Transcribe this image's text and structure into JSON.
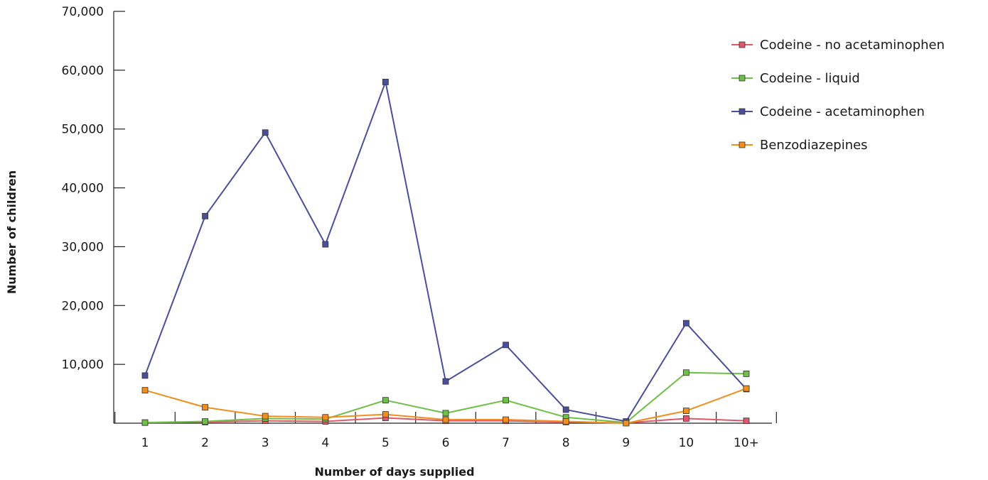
{
  "chart_data": {
    "type": "line",
    "xlabel": "Number of days supplied",
    "ylabel": "Number of children",
    "ylim": [
      0,
      70000
    ],
    "yticks": [
      10000,
      20000,
      30000,
      40000,
      50000,
      60000,
      70000
    ],
    "ytick_labels": [
      "10,000",
      "20,000",
      "30,000",
      "40,000",
      "50,000",
      "60,000",
      "70,000"
    ],
    "categories": [
      "1",
      "2",
      "3",
      "4",
      "5",
      "6",
      "7",
      "8",
      "9",
      "10",
      "10+"
    ],
    "grid": false,
    "legend_position": "top-right",
    "series": [
      {
        "name": "Codeine - no acetaminophen",
        "color": "#e0566a",
        "values": [
          100,
          200,
          400,
          300,
          900,
          400,
          400,
          200,
          50,
          800,
          400
        ]
      },
      {
        "name": "Codeine - liquid",
        "color": "#6dbf45",
        "values": [
          100,
          300,
          800,
          700,
          3900,
          1700,
          3900,
          1000,
          100,
          8600,
          8400
        ]
      },
      {
        "name": "Codeine - acetaminophen",
        "color": "#4a4f9c",
        "values": [
          8100,
          35200,
          49400,
          30400,
          58000,
          7100,
          13300,
          2300,
          300,
          17000,
          5800
        ]
      },
      {
        "name": "Benzodiazepines",
        "color": "#f28e1c",
        "values": [
          5600,
          2700,
          1200,
          1000,
          1500,
          600,
          600,
          300,
          0,
          2100,
          5900
        ]
      }
    ]
  }
}
